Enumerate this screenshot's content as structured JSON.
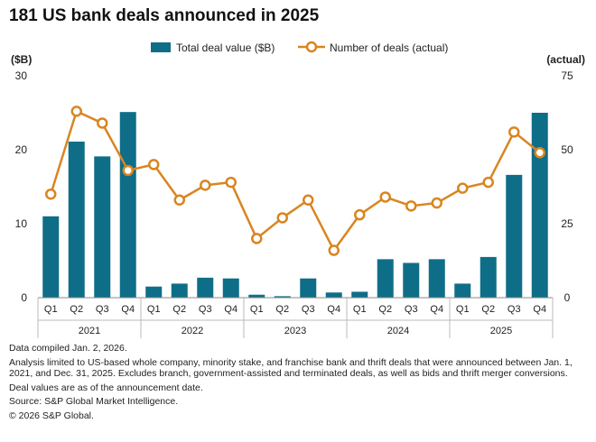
{
  "chart_data": {
    "type": "bar+line",
    "title": "181 US bank deals announced in 2025",
    "left_axis_label": "($B)",
    "right_axis_label": "(actual)",
    "left_ylim": [
      0,
      30
    ],
    "left_ticks": [
      "0",
      "10",
      "20",
      "30"
    ],
    "right_ylim": [
      0,
      75
    ],
    "right_ticks": [
      "0",
      "25",
      "50",
      "75"
    ],
    "legend": {
      "bar_label": "Total deal value ($B)",
      "line_label": "Number of deals (actual)"
    },
    "years": [
      "2021",
      "2022",
      "2023",
      "2024",
      "2025"
    ],
    "quarters": [
      "Q1",
      "Q2",
      "Q3",
      "Q4"
    ],
    "series": [
      {
        "name": "Total deal value ($B)",
        "kind": "bar",
        "values": [
          11.0,
          21.1,
          19.1,
          25.1,
          1.5,
          1.9,
          2.7,
          2.6,
          0.4,
          0.2,
          2.6,
          0.7,
          0.8,
          5.2,
          4.7,
          5.2,
          1.9,
          5.5,
          16.6,
          25.0
        ]
      },
      {
        "name": "Number of deals (actual)",
        "kind": "line",
        "values": [
          35,
          63,
          59,
          43,
          45,
          33,
          38,
          39,
          20,
          27,
          33,
          16,
          28,
          34,
          31,
          32,
          37,
          39,
          56,
          49
        ]
      }
    ],
    "colors": {
      "bar": "#0f6e87",
      "line": "#d98520",
      "marker_fill": "#ffffff",
      "axis": "#888888",
      "divider": "#bbbbbb"
    }
  },
  "notes": {
    "compiled": "Data compiled Jan. 2, 2026.",
    "analysis": "Analysis limited to US-based whole company, minority stake, and franchise bank and thrift deals that were announced between Jan. 1, 2021, and Dec. 31, 2025. Excludes branch, government-assisted and terminated deals, as well as bids and thrift merger conversions.",
    "deal_values": "Deal values are as of the announcement date.",
    "source": "Source: S&P Global Market Intelligence.",
    "copyright": "© 2026 S&P Global."
  }
}
